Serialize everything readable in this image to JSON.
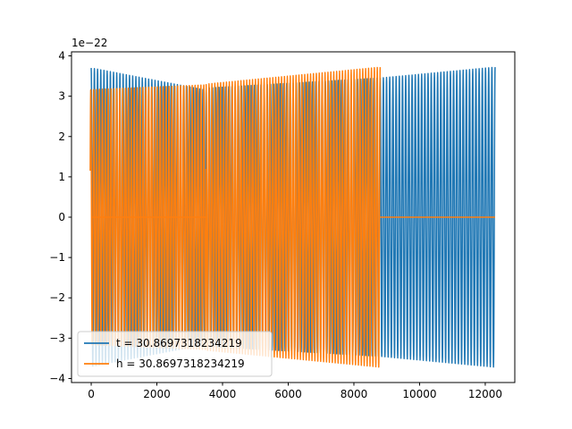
{
  "chart_data": {
    "type": "line",
    "title": "",
    "xlabel": "",
    "ylabel": "",
    "y_scale_label": "1e−22",
    "xlim": [
      -600,
      12900
    ],
    "ylim": [
      -4.1,
      4.1
    ],
    "xticks": [
      0,
      2000,
      4000,
      6000,
      8000,
      10000,
      12000
    ],
    "xtick_labels": [
      "0",
      "2000",
      "4000",
      "6000",
      "8000",
      "10000",
      "12000"
    ],
    "yticks": [
      -4,
      -3,
      -2,
      -1,
      0,
      1,
      2,
      3,
      4
    ],
    "ytick_labels": [
      "−4",
      "−3",
      "−2",
      "−1",
      "0",
      "1",
      "2",
      "3",
      "4"
    ],
    "grid": false,
    "legend_placement": "lower-left",
    "series": [
      {
        "name": "t = 30.8697318234219",
        "color": "#1f77b4",
        "segments": [
          {
            "kind": "osc",
            "x_start": 0,
            "x_end": 3500,
            "cycles": 36,
            "amp_start": 3.7,
            "amp_end": 3.15
          },
          {
            "kind": "osc",
            "x_start": 3500,
            "x_end": 8800,
            "cycles": 54,
            "amp_start": 3.2,
            "amp_end": 3.45
          },
          {
            "kind": "osc",
            "x_start": 8800,
            "x_end": 12300,
            "cycles": 36,
            "amp_start": 3.45,
            "amp_end": 3.72
          }
        ]
      },
      {
        "name": "h = 30.8697318234219",
        "color": "#ff7f0e",
        "segments": [
          {
            "kind": "osc",
            "x_start": -30,
            "x_end": 3500,
            "cycles": 40,
            "amp_start": 3.18,
            "amp_end": 3.3,
            "phase_start": -1.2
          },
          {
            "kind": "flat",
            "x_start": 30,
            "x_end": 3500,
            "value": 0
          },
          {
            "kind": "osc",
            "x_start": 3500,
            "x_end": 8800,
            "cycles": 60,
            "amp_start": 3.3,
            "amp_end": 3.72
          },
          {
            "kind": "flat",
            "x_start": 8800,
            "x_end": 12300,
            "value": 0
          }
        ]
      }
    ]
  }
}
